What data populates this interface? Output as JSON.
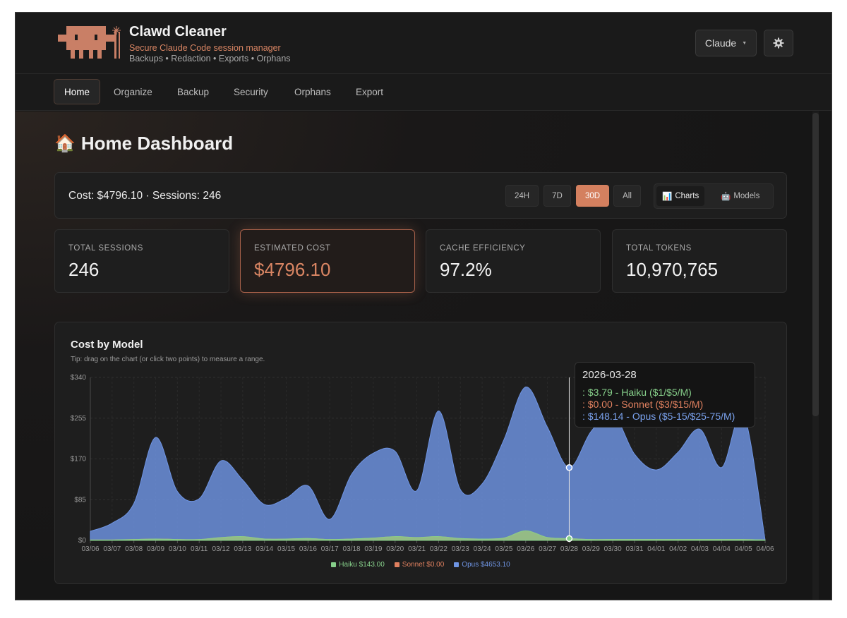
{
  "app": {
    "title": "Clawd Cleaner",
    "subtitle": "Secure Claude Code session manager",
    "tags": "Backups • Redaction • Exports • Orphans",
    "model_selector": "Claude",
    "settings_icon": "gear-icon"
  },
  "nav": {
    "tabs": [
      {
        "label": "Home",
        "active": true
      },
      {
        "label": "Organize"
      },
      {
        "label": "Backup"
      },
      {
        "label": "Security"
      },
      {
        "label": "Orphans"
      },
      {
        "label": "Export"
      }
    ]
  },
  "dashboard": {
    "title_icon": "house-icon",
    "title": "Home Dashboard",
    "summary": "Cost: $4796.10 · Sessions: 246",
    "ranges": [
      {
        "label": "24H"
      },
      {
        "label": "7D"
      },
      {
        "label": "30D",
        "active": true
      },
      {
        "label": "All"
      }
    ],
    "views": [
      {
        "label": "Charts",
        "icon": "bar-chart-icon",
        "active": true
      },
      {
        "label": "Models",
        "icon": "robot-icon"
      }
    ],
    "stats": [
      {
        "label": "TOTAL SESSIONS",
        "value": "246"
      },
      {
        "label": "ESTIMATED COST",
        "value": "$4796.10",
        "highlight": true
      },
      {
        "label": "CACHE EFFICIENCY",
        "value": "97.2%"
      },
      {
        "label": "TOTAL TOKENS",
        "value": "10,970,765"
      }
    ]
  },
  "chart": {
    "title": "Cost by Model",
    "tip": "Tip: drag on the chart (or click two points) to measure a range.",
    "tooltip": {
      "date": "2026-03-28",
      "lines": [
        {
          "text": ": $3.79 - Haiku ($1/$5/M)",
          "color": "#86cf8a"
        },
        {
          "text": ": $0.00 - Sonnet ($3/$15/M)",
          "color": "#e0805f"
        },
        {
          "text": ": $148.14 - Opus ($5-15/$25-75/M)",
          "color": "#7aa2ee"
        }
      ]
    },
    "legend": [
      {
        "label": "Haiku $143.00",
        "color": "#86cf8a"
      },
      {
        "label": "Sonnet $0.00",
        "color": "#e0805f"
      },
      {
        "label": "Opus $4653.10",
        "color": "#6f95e4"
      }
    ]
  },
  "chart_data": {
    "type": "area",
    "title": "Cost by Model",
    "x": [
      "03/06",
      "03/07",
      "03/08",
      "03/09",
      "03/10",
      "03/11",
      "03/12",
      "03/13",
      "03/14",
      "03/15",
      "03/16",
      "03/17",
      "03/18",
      "03/19",
      "03/20",
      "03/21",
      "03/22",
      "03/23",
      "03/24",
      "03/25",
      "03/26",
      "03/27",
      "03/28",
      "03/29",
      "03/30",
      "03/31",
      "04/01",
      "04/02",
      "04/03",
      "04/04",
      "04/05",
      "04/06"
    ],
    "y_ticks": [
      "$0",
      "$85",
      "$170",
      "$255",
      "$340"
    ],
    "ylim": [
      0,
      340
    ],
    "stacked": true,
    "grid": true,
    "legend_position": "bottom",
    "series": [
      {
        "name": "Haiku",
        "color": "#86cf8a",
        "values": [
          1,
          1,
          2,
          3,
          2,
          2,
          6,
          8,
          3,
          3,
          4,
          2,
          3,
          5,
          8,
          6,
          8,
          4,
          3,
          5,
          20,
          6,
          3.79,
          2,
          2,
          2,
          2,
          2,
          2,
          2,
          2,
          1
        ]
      },
      {
        "name": "Sonnet",
        "color": "#e0805f",
        "values": [
          0,
          0,
          0,
          0,
          0,
          0,
          0,
          0,
          0,
          0,
          0,
          0,
          0,
          0,
          0,
          0,
          0,
          0,
          0,
          0,
          0,
          0,
          0,
          0,
          0,
          0,
          0,
          0,
          0,
          0,
          0,
          0
        ]
      },
      {
        "name": "Opus",
        "color": "#6f95e4",
        "values": [
          18,
          35,
          75,
          212,
          100,
          85,
          160,
          118,
          72,
          85,
          110,
          42,
          135,
          177,
          178,
          98,
          262,
          102,
          115,
          205,
          300,
          230,
          148.14,
          225,
          262,
          178,
          145,
          182,
          230,
          150,
          262,
          0
        ]
      }
    ]
  }
}
